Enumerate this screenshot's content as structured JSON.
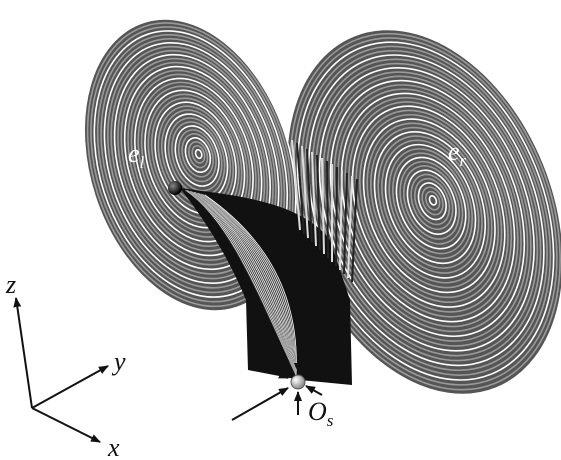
{
  "labels": {
    "left_equilibrium": {
      "main": "e",
      "sub": "l"
    },
    "right_equilibrium": {
      "main": "e",
      "sub": "r"
    },
    "saddle_origin": {
      "main": "O",
      "sub": "s"
    },
    "axis_z": "z",
    "axis_y": "y",
    "axis_x": "x"
  }
}
